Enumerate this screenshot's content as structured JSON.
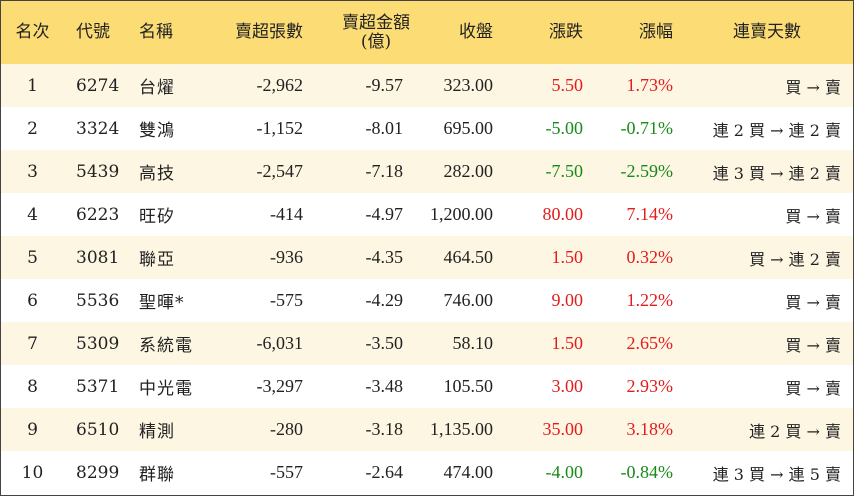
{
  "headers": {
    "rank": "名次",
    "code": "代號",
    "name": "名稱",
    "sell_lots": "賣超張數",
    "sell_amount": "賣超金額",
    "sell_amount_unit": "(億)",
    "close": "收盤",
    "change": "漲跌",
    "change_pct": "漲幅",
    "streak": "連賣天數"
  },
  "colors": {
    "header_bg": "#fcdc74",
    "odd_row": "#fdf6e3",
    "up": "#e31c1c",
    "down": "#178a17"
  },
  "rows": [
    {
      "rank": "1",
      "code": "6274",
      "name": "台燿",
      "lots": "-2,962",
      "amount": "-9.57",
      "close": "323.00",
      "change": "5.50",
      "pct": "1.73%",
      "dir": "up",
      "streak": "買 → 賣"
    },
    {
      "rank": "2",
      "code": "3324",
      "name": "雙鴻",
      "lots": "-1,152",
      "amount": "-8.01",
      "close": "695.00",
      "change": "-5.00",
      "pct": "-0.71%",
      "dir": "down",
      "streak": "連 2 買 → 連 2 賣"
    },
    {
      "rank": "3",
      "code": "5439",
      "name": "高技",
      "lots": "-2,547",
      "amount": "-7.18",
      "close": "282.00",
      "change": "-7.50",
      "pct": "-2.59%",
      "dir": "down",
      "streak": "連 3 買 → 連 2 賣"
    },
    {
      "rank": "4",
      "code": "6223",
      "name": "旺矽",
      "lots": "-414",
      "amount": "-4.97",
      "close": "1,200.00",
      "change": "80.00",
      "pct": "7.14%",
      "dir": "up",
      "streak": "買 → 賣"
    },
    {
      "rank": "5",
      "code": "3081",
      "name": "聯亞",
      "lots": "-936",
      "amount": "-4.35",
      "close": "464.50",
      "change": "1.50",
      "pct": "0.32%",
      "dir": "up",
      "streak": "買 → 連 2 賣"
    },
    {
      "rank": "6",
      "code": "5536",
      "name": "聖暉*",
      "lots": "-575",
      "amount": "-4.29",
      "close": "746.00",
      "change": "9.00",
      "pct": "1.22%",
      "dir": "up",
      "streak": "買 → 賣"
    },
    {
      "rank": "7",
      "code": "5309",
      "name": "系統電",
      "lots": "-6,031",
      "amount": "-3.50",
      "close": "58.10",
      "change": "1.50",
      "pct": "2.65%",
      "dir": "up",
      "streak": "買 → 賣"
    },
    {
      "rank": "8",
      "code": "5371",
      "name": "中光電",
      "lots": "-3,297",
      "amount": "-3.48",
      "close": "105.50",
      "change": "3.00",
      "pct": "2.93%",
      "dir": "up",
      "streak": "買 → 賣"
    },
    {
      "rank": "9",
      "code": "6510",
      "name": "精測",
      "lots": "-280",
      "amount": "-3.18",
      "close": "1,135.00",
      "change": "35.00",
      "pct": "3.18%",
      "dir": "up",
      "streak": "連 2 買 → 賣"
    },
    {
      "rank": "10",
      "code": "8299",
      "name": "群聯",
      "lots": "-557",
      "amount": "-2.64",
      "close": "474.00",
      "change": "-4.00",
      "pct": "-0.84%",
      "dir": "down",
      "streak": "連 3 買 → 連 5 賣"
    }
  ]
}
